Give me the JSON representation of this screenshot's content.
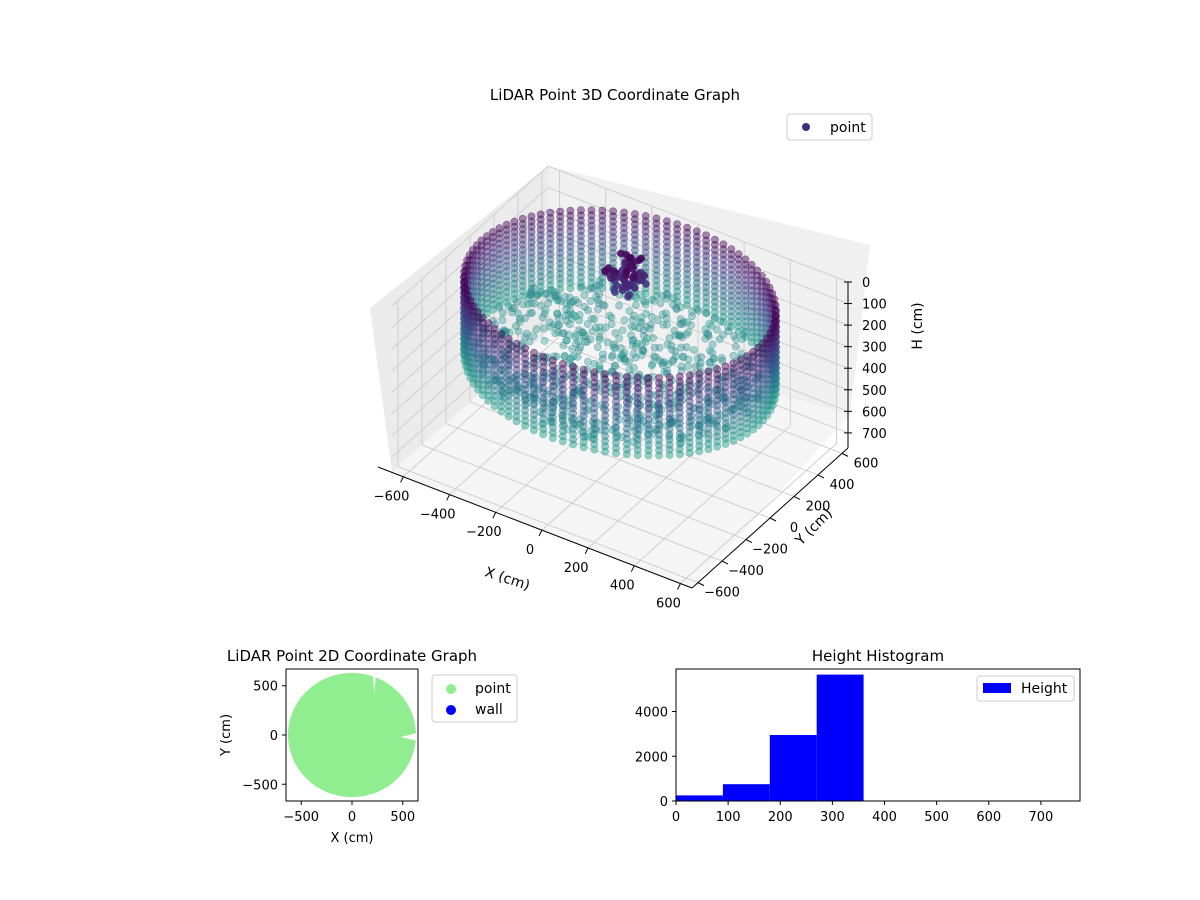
{
  "chart_data": [
    {
      "type": "scatter",
      "projection": "3d",
      "title": "LiDAR Point 3D Coordinate Graph",
      "xlabel": "X (cm)",
      "ylabel": "Y (cm)",
      "zlabel": "H (cm)",
      "xticks": [
        "−600",
        "−400",
        "−200",
        "0",
        "200",
        "400",
        "600"
      ],
      "yticks": [
        "−600",
        "−400",
        "−200",
        "0",
        "200",
        "400",
        "600"
      ],
      "zticks": [
        "0",
        "100",
        "200",
        "300",
        "400",
        "500",
        "600",
        "700"
      ],
      "xlim": [
        -650,
        650
      ],
      "ylim": [
        -650,
        650
      ],
      "zlim": [
        0,
        770
      ],
      "z_inverted": true,
      "grid": true,
      "legend": {
        "placement": "top-right",
        "entries": [
          {
            "label": "point",
            "color": "#3b2f7e"
          }
        ]
      },
      "colormap": "viridis",
      "series": [
        {
          "name": "point",
          "description_shape": "cylindrical wall of points, radius ~600 cm, heights 0–360 cm, with interior floor points near 300 cm and a cluster near the center",
          "wall_radius": 600,
          "height_range": [
            0,
            360
          ]
        }
      ]
    },
    {
      "type": "scatter",
      "title": "LiDAR Point 2D Coordinate Graph",
      "xlabel": "X (cm)",
      "ylabel": "Y (cm)",
      "xticks": [
        "−500",
        "0",
        "500"
      ],
      "yticks": [
        "−500",
        "0",
        "500"
      ],
      "xlim": [
        -650,
        650
      ],
      "ylim": [
        -670,
        670
      ],
      "grid": false,
      "legend": {
        "placement": "outside-right",
        "entries": [
          {
            "label": "point",
            "color": "#90ee90"
          },
          {
            "label": "wall",
            "color": "#0000ff"
          }
        ]
      },
      "series": [
        {
          "name": "point",
          "color": "#90ee90",
          "shape": "filled disc of radius ~630 cm with a notch near top at x≈230 and a small notch at right",
          "radius": 630
        },
        {
          "name": "wall",
          "color": "#0000ff",
          "points": []
        }
      ]
    },
    {
      "type": "bar",
      "subtype": "histogram",
      "title": "Height Histogram",
      "xticks": [
        "0",
        "100",
        "200",
        "300",
        "400",
        "500",
        "600",
        "700"
      ],
      "yticks": [
        "0",
        "2000",
        "4000"
      ],
      "xlim": [
        0,
        775
      ],
      "ylim": [
        0,
        5900
      ],
      "legend": {
        "placement": "top-right",
        "entries": [
          {
            "label": "Height",
            "color": "#0000ff"
          }
        ]
      },
      "series": [
        {
          "name": "Height",
          "color": "#0000ff",
          "bins": [
            {
              "x0": 0,
              "x1": 90,
              "value": 250
            },
            {
              "x0": 90,
              "x1": 180,
              "value": 750
            },
            {
              "x0": 180,
              "x1": 270,
              "value": 2950
            },
            {
              "x0": 270,
              "x1": 360,
              "value": 5650
            },
            {
              "x0": 360,
              "x1": 450,
              "value": 0
            },
            {
              "x0": 450,
              "x1": 540,
              "value": 0
            },
            {
              "x0": 540,
              "x1": 630,
              "value": 0
            },
            {
              "x0": 630,
              "x1": 720,
              "value": 0
            }
          ]
        }
      ]
    }
  ]
}
